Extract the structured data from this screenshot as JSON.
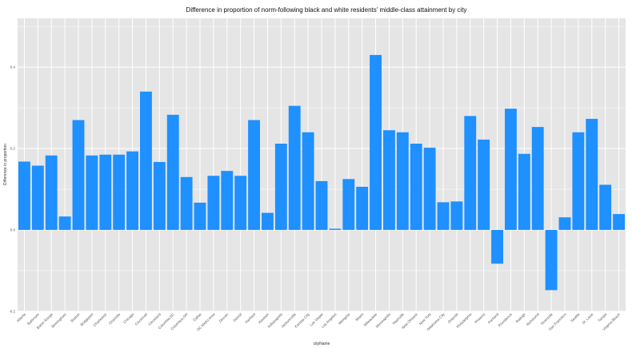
{
  "chart_data": {
    "type": "bar",
    "title": "Difference in proportion of norm-following black and white residents' middle-class attainment by city",
    "xlabel": "cityName",
    "ylabel": "Difference in proportion",
    "ylim": [
      -0.2,
      0.52
    ],
    "yticks": [
      -0.2,
      0.0,
      0.2,
      0.4
    ],
    "ytick_labels": [
      "-0.2",
      "0.0",
      "0.2",
      "0.4"
    ],
    "grid": true,
    "bar_color": "#1e90ff",
    "panel_color": "#e5e5e5",
    "categories": [
      "Atlanta",
      "Baltimore",
      "Baton Rouge",
      "Birmingham",
      "Boston",
      "Bridgeport",
      "Charleston",
      "Charlotte",
      "Chicago",
      "Cincinnati",
      "Cleveland",
      "Columbia,SC",
      "Columbus,OH",
      "Dallas",
      "DC Metro Area",
      "Denver",
      "Detroit",
      "Hartford",
      "Houston",
      "Indianapolis",
      "Jacksonville",
      "Kansas City",
      "Las Vegas",
      "Los Angeles",
      "Memphis",
      "Miami",
      "Milwaukee",
      "Minneapolis",
      "Nashville",
      "New Orleans",
      "New York",
      "Oklahoma City",
      "Orlando",
      "Philadelphia",
      "Phoenix",
      "Portland",
      "Providence",
      "Raleigh",
      "Richmond",
      "Riverside",
      "San Francisco",
      "Seattle",
      "St. Louis",
      "Tampa",
      "Virginia Beach"
    ],
    "values": [
      0.168,
      0.158,
      0.183,
      0.033,
      0.27,
      0.183,
      0.185,
      0.185,
      0.193,
      0.34,
      0.167,
      0.283,
      0.13,
      0.067,
      0.133,
      0.145,
      0.133,
      0.27,
      0.042,
      0.212,
      0.305,
      0.24,
      0.12,
      0.003,
      0.125,
      0.106,
      0.43,
      0.245,
      0.24,
      0.212,
      0.202,
      0.068,
      0.07,
      0.28,
      0.222,
      -0.083,
      0.298,
      0.187,
      0.253,
      -0.148,
      0.031,
      0.24,
      0.273,
      0.111,
      0.039
    ]
  }
}
